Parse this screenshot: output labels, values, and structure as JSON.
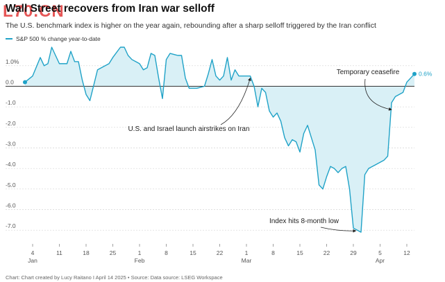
{
  "header": {
    "title": "Wall Street recovers from Iran war selloff",
    "subtitle": "The U.S. benchmark index is higher on the year again, rebounding after a sharp selloff triggered by the Iran conflict",
    "watermark": "L70.CN"
  },
  "legend": {
    "label": "S&P 500 % change year-to-date",
    "color": "#1fa2c7"
  },
  "footer": {
    "text": "Chart: Chart created by Lucy Raitano I April 14 2025 • Source: Data source: LSEG Workspace"
  },
  "chart_data": {
    "type": "area",
    "title": "Wall Street recovers from Iran war selloff",
    "xlabel": "",
    "ylabel": "",
    "ylim": [
      -7.5,
      1.5
    ],
    "xlim": [
      "2025-01-02",
      "2025-04-14"
    ],
    "grid": true,
    "line_color": "#1fa2c7",
    "fill_color": "#d9f0f6",
    "y_ticks": [
      {
        "v": 1.0,
        "label": "1.0%"
      },
      {
        "v": 0.0,
        "label": "0.0"
      },
      {
        "v": -1.0,
        "label": "-1.0"
      },
      {
        "v": -2.0,
        "label": "-2.0"
      },
      {
        "v": -3.0,
        "label": "-3.0"
      },
      {
        "v": -4.0,
        "label": "-4.0"
      },
      {
        "v": -5.0,
        "label": "-5.0"
      },
      {
        "v": -6.0,
        "label": "-6.0"
      },
      {
        "v": -7.0,
        "label": "-7.0"
      }
    ],
    "x_ticks": [
      {
        "date": "2025-01-04",
        "day": "4",
        "month": "Jan"
      },
      {
        "date": "2025-01-11",
        "day": "11",
        "month": ""
      },
      {
        "date": "2025-01-18",
        "day": "18",
        "month": ""
      },
      {
        "date": "2025-01-25",
        "day": "25",
        "month": ""
      },
      {
        "date": "2025-02-01",
        "day": "1",
        "month": "Feb"
      },
      {
        "date": "2025-02-08",
        "day": "8",
        "month": ""
      },
      {
        "date": "2025-02-15",
        "day": "15",
        "month": ""
      },
      {
        "date": "2025-02-22",
        "day": "22",
        "month": ""
      },
      {
        "date": "2025-03-01",
        "day": "1",
        "month": "Mar"
      },
      {
        "date": "2025-03-08",
        "day": "8",
        "month": ""
      },
      {
        "date": "2025-03-15",
        "day": "15",
        "month": ""
      },
      {
        "date": "2025-03-22",
        "day": "22",
        "month": ""
      },
      {
        "date": "2025-03-29",
        "day": "29",
        "month": ""
      },
      {
        "date": "2025-04-05",
        "day": "5",
        "month": "Apr"
      },
      {
        "date": "2025-04-12",
        "day": "12",
        "month": ""
      }
    ],
    "series": [
      {
        "name": "S&P 500 % change year-to-date",
        "points": [
          {
            "x": "2025-01-02",
            "y": 0.2
          },
          {
            "x": "2025-01-04",
            "y": 0.5
          },
          {
            "x": "2025-01-06",
            "y": 1.4
          },
          {
            "x": "2025-01-07",
            "y": 1.0
          },
          {
            "x": "2025-01-08",
            "y": 1.1
          },
          {
            "x": "2025-01-09",
            "y": 1.9
          },
          {
            "x": "2025-01-10",
            "y": 1.5
          },
          {
            "x": "2025-01-11",
            "y": 1.1
          },
          {
            "x": "2025-01-13",
            "y": 1.1
          },
          {
            "x": "2025-01-14",
            "y": 1.7
          },
          {
            "x": "2025-01-15",
            "y": 1.2
          },
          {
            "x": "2025-01-16",
            "y": 1.2
          },
          {
            "x": "2025-01-17",
            "y": 0.3
          },
          {
            "x": "2025-01-18",
            "y": -0.4
          },
          {
            "x": "2025-01-19",
            "y": -0.7
          },
          {
            "x": "2025-01-21",
            "y": 0.8
          },
          {
            "x": "2025-01-22",
            "y": 0.9
          },
          {
            "x": "2025-01-24",
            "y": 1.1
          },
          {
            "x": "2025-01-25",
            "y": 1.4
          },
          {
            "x": "2025-01-27",
            "y": 1.9
          },
          {
            "x": "2025-01-28",
            "y": 1.9
          },
          {
            "x": "2025-01-29",
            "y": 1.5
          },
          {
            "x": "2025-01-30",
            "y": 1.3
          },
          {
            "x": "2025-01-31",
            "y": 1.2
          },
          {
            "x": "2025-02-01",
            "y": 1.1
          },
          {
            "x": "2025-02-02",
            "y": 0.8
          },
          {
            "x": "2025-02-03",
            "y": 0.9
          },
          {
            "x": "2025-02-04",
            "y": 1.6
          },
          {
            "x": "2025-02-05",
            "y": 1.5
          },
          {
            "x": "2025-02-06",
            "y": 0.4
          },
          {
            "x": "2025-02-07",
            "y": -0.6
          },
          {
            "x": "2025-02-08",
            "y": 1.3
          },
          {
            "x": "2025-02-09",
            "y": 1.6
          },
          {
            "x": "2025-02-11",
            "y": 1.5
          },
          {
            "x": "2025-02-12",
            "y": 1.5
          },
          {
            "x": "2025-02-13",
            "y": 0.4
          },
          {
            "x": "2025-02-14",
            "y": -0.1
          },
          {
            "x": "2025-02-16",
            "y": -0.1
          },
          {
            "x": "2025-02-18",
            "y": -0.0
          },
          {
            "x": "2025-02-19",
            "y": 0.6
          },
          {
            "x": "2025-02-20",
            "y": 1.3
          },
          {
            "x": "2025-02-21",
            "y": 0.5
          },
          {
            "x": "2025-02-22",
            "y": 0.3
          },
          {
            "x": "2025-02-23",
            "y": 0.5
          },
          {
            "x": "2025-02-24",
            "y": 1.4
          },
          {
            "x": "2025-02-25",
            "y": 0.3
          },
          {
            "x": "2025-02-26",
            "y": 0.8
          },
          {
            "x": "2025-02-27",
            "y": 0.5
          },
          {
            "x": "2025-03-01",
            "y": 0.5
          },
          {
            "x": "2025-03-02",
            "y": 0.5
          },
          {
            "x": "2025-03-03",
            "y": 0.0
          },
          {
            "x": "2025-03-04",
            "y": -1.0
          },
          {
            "x": "2025-03-05",
            "y": -0.1
          },
          {
            "x": "2025-03-06",
            "y": -0.3
          },
          {
            "x": "2025-03-07",
            "y": -1.2
          },
          {
            "x": "2025-03-08",
            "y": -1.5
          },
          {
            "x": "2025-03-09",
            "y": -1.3
          },
          {
            "x": "2025-03-10",
            "y": -1.7
          },
          {
            "x": "2025-03-11",
            "y": -2.5
          },
          {
            "x": "2025-03-12",
            "y": -2.9
          },
          {
            "x": "2025-03-13",
            "y": -2.6
          },
          {
            "x": "2025-03-14",
            "y": -2.7
          },
          {
            "x": "2025-03-15",
            "y": -3.2
          },
          {
            "x": "2025-03-16",
            "y": -2.3
          },
          {
            "x": "2025-03-17",
            "y": -1.9
          },
          {
            "x": "2025-03-18",
            "y": -2.5
          },
          {
            "x": "2025-03-19",
            "y": -3.1
          },
          {
            "x": "2025-03-20",
            "y": -4.8
          },
          {
            "x": "2025-03-21",
            "y": -5.0
          },
          {
            "x": "2025-03-22",
            "y": -4.4
          },
          {
            "x": "2025-03-23",
            "y": -3.9
          },
          {
            "x": "2025-03-24",
            "y": -4.0
          },
          {
            "x": "2025-03-25",
            "y": -4.2
          },
          {
            "x": "2025-03-26",
            "y": -4.0
          },
          {
            "x": "2025-03-27",
            "y": -3.9
          },
          {
            "x": "2025-03-28",
            "y": -5.0
          },
          {
            "x": "2025-03-29",
            "y": -6.9
          },
          {
            "x": "2025-03-30",
            "y": -7.0
          },
          {
            "x": "2025-03-31",
            "y": -7.1
          },
          {
            "x": "2025-04-01",
            "y": -4.3
          },
          {
            "x": "2025-04-02",
            "y": -4.0
          },
          {
            "x": "2025-04-04",
            "y": -3.8
          },
          {
            "x": "2025-04-06",
            "y": -3.6
          },
          {
            "x": "2025-04-07",
            "y": -3.4
          },
          {
            "x": "2025-04-08",
            "y": -0.8
          },
          {
            "x": "2025-04-09",
            "y": -0.5
          },
          {
            "x": "2025-04-10",
            "y": -0.4
          },
          {
            "x": "2025-04-11",
            "y": -0.3
          },
          {
            "x": "2025-04-12",
            "y": 0.2
          },
          {
            "x": "2025-04-14",
            "y": 0.6
          }
        ]
      }
    ],
    "end_label": "0.6%",
    "annotations": [
      {
        "text": "Temporary ceasefire",
        "anchor": {
          "x": "2025-04-08",
          "y": -1.0
        }
      },
      {
        "text": "U.S. and Israel launch airstrikes on Iran",
        "anchor": {
          "x": "2025-03-02",
          "y": 0.4
        }
      },
      {
        "text": "Index hits 8-month low",
        "anchor": {
          "x": "2025-03-30",
          "y": -7.1
        }
      }
    ]
  }
}
